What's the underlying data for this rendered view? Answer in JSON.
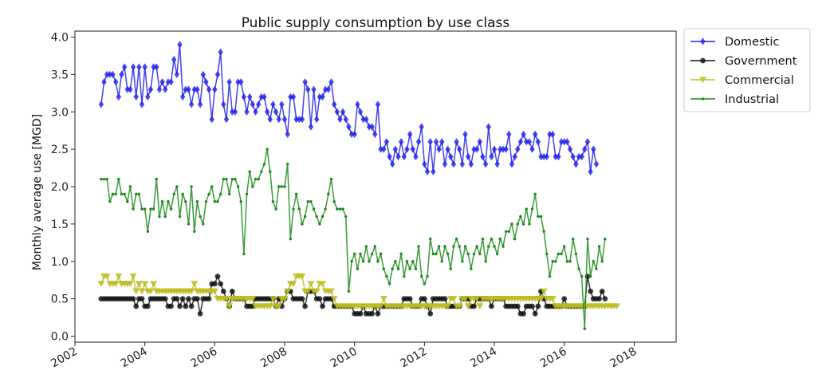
{
  "chart_data": {
    "type": "line",
    "title": "Public supply consumption by use class",
    "xlabel": "",
    "ylabel": "Monthly average use [MGD]",
    "xlim": [
      2002.0,
      2019.2
    ],
    "ylim": [
      -0.08,
      4.08
    ],
    "x_ticks": [
      "2002",
      "2004",
      "2006",
      "2008",
      "2010",
      "2012",
      "2014",
      "2016",
      "2018"
    ],
    "y_ticks": [
      "0.0",
      "0.5",
      "1.0",
      "1.5",
      "2.0",
      "2.5",
      "3.0",
      "3.5",
      "4.0"
    ],
    "x_start": "2002-10",
    "x_step": "1 month",
    "legend_position": "outside upper right",
    "grid": false,
    "series": [
      {
        "name": "Domestic",
        "color": "#2222ee",
        "marker": "diamond",
        "values": [
          3.1,
          3.4,
          3.5,
          3.5,
          3.5,
          3.4,
          3.2,
          3.5,
          3.6,
          3.3,
          3.3,
          3.6,
          3.2,
          3.6,
          3.1,
          3.6,
          3.2,
          3.3,
          3.6,
          3.6,
          3.3,
          3.4,
          3.3,
          3.4,
          3.4,
          3.7,
          3.5,
          3.9,
          3.2,
          3.3,
          3.3,
          3.1,
          3.3,
          3.3,
          3.1,
          3.5,
          3.4,
          3.3,
          2.9,
          3.3,
          3.5,
          3.8,
          3.1,
          2.9,
          3.4,
          3.0,
          3.0,
          3.4,
          3.4,
          3.2,
          3.0,
          3.2,
          3.1,
          3.0,
          3.1,
          3.2,
          3.2,
          3.0,
          2.9,
          3.1,
          3.0,
          2.9,
          3.1,
          2.9,
          2.7,
          3.2,
          3.2,
          2.9,
          2.9,
          2.9,
          3.4,
          3.3,
          2.8,
          3.3,
          2.9,
          3.2,
          3.2,
          3.3,
          3.3,
          3.4,
          3.1,
          3.0,
          2.9,
          3.0,
          2.9,
          2.8,
          2.7,
          2.7,
          3.1,
          3.0,
          2.9,
          2.9,
          2.8,
          2.8,
          2.7,
          3.1,
          2.5,
          2.5,
          2.6,
          2.4,
          2.3,
          2.5,
          2.4,
          2.6,
          2.4,
          2.5,
          2.7,
          2.5,
          2.4,
          2.6,
          2.8,
          2.3,
          2.2,
          2.6,
          2.2,
          2.6,
          2.5,
          2.6,
          2.3,
          2.5,
          2.4,
          2.3,
          2.6,
          2.5,
          2.3,
          2.7,
          2.4,
          2.3,
          2.5,
          2.5,
          2.6,
          2.4,
          2.3,
          2.8,
          2.4,
          2.5,
          2.3,
          2.5,
          2.5,
          2.5,
          2.7,
          2.3,
          2.4,
          2.5,
          2.6,
          2.7,
          2.6,
          2.6,
          2.5,
          2.7,
          2.6,
          2.4,
          2.4,
          2.4,
          2.7,
          2.7,
          2.4,
          2.4,
          2.6,
          2.6,
          2.6,
          2.5,
          2.4,
          2.3,
          2.4,
          2.4,
          2.5,
          2.6,
          2.2,
          2.5,
          2.3
        ]
      },
      {
        "name": "Government",
        "color": "#111111",
        "marker": "circle",
        "values": [
          0.5,
          0.5,
          0.5,
          0.5,
          0.5,
          0.5,
          0.5,
          0.5,
          0.5,
          0.5,
          0.5,
          0.5,
          0.4,
          0.5,
          0.5,
          0.4,
          0.4,
          0.5,
          0.5,
          0.5,
          0.5,
          0.5,
          0.5,
          0.4,
          0.4,
          0.5,
          0.5,
          0.4,
          0.5,
          0.4,
          0.5,
          0.4,
          0.5,
          0.5,
          0.3,
          0.5,
          0.5,
          0.5,
          0.7,
          0.7,
          0.8,
          0.7,
          0.6,
          0.5,
          0.4,
          0.6,
          0.5,
          0.5,
          0.5,
          0.5,
          0.4,
          0.4,
          0.4,
          0.5,
          0.5,
          0.5,
          0.5,
          0.5,
          0.5,
          0.5,
          0.4,
          0.5,
          0.4,
          0.5,
          0.6,
          0.6,
          0.5,
          0.5,
          0.5,
          0.5,
          0.4,
          0.6,
          0.6,
          0.6,
          0.5,
          0.5,
          0.4,
          0.5,
          0.5,
          0.5,
          0.4,
          0.4,
          0.4,
          0.4,
          0.4,
          0.4,
          0.4,
          0.3,
          0.3,
          0.3,
          0.4,
          0.3,
          0.3,
          0.3,
          0.4,
          0.3,
          0.4,
          0.4,
          0.4,
          0.4,
          0.4,
          0.4,
          0.4,
          0.4,
          0.5,
          0.5,
          0.5,
          0.4,
          0.4,
          0.4,
          0.5,
          0.5,
          0.4,
          0.3,
          0.5,
          0.5,
          0.5,
          0.5,
          0.5,
          0.4,
          0.4,
          0.4,
          0.4,
          0.4,
          0.5,
          0.5,
          0.5,
          0.4,
          0.4,
          0.5,
          0.5,
          0.5,
          0.5,
          0.5,
          0.4,
          0.5,
          0.5,
          0.5,
          0.5,
          0.4,
          0.4,
          0.4,
          0.4,
          0.4,
          0.3,
          0.3,
          0.4,
          0.4,
          0.4,
          0.3,
          0.4,
          0.6,
          0.5,
          0.4,
          0.4,
          0.4,
          0.4,
          0.4,
          0.4,
          0.5,
          0.4,
          0.4,
          0.4,
          0.4,
          0.4,
          0.4,
          0.4,
          0.8,
          0.6,
          0.5,
          0.5,
          0.5,
          0.6,
          0.5
        ]
      },
      {
        "name": "Commercial",
        "color": "#bcbd22",
        "marker": "triangle-down",
        "values": [
          0.7,
          0.8,
          0.8,
          0.7,
          0.7,
          0.7,
          0.8,
          0.7,
          0.7,
          0.7,
          0.7,
          0.8,
          0.6,
          0.7,
          0.6,
          0.7,
          0.6,
          0.6,
          0.7,
          0.6,
          0.6,
          0.6,
          0.6,
          0.6,
          0.6,
          0.6,
          0.6,
          0.6,
          0.6,
          0.6,
          0.6,
          0.6,
          0.7,
          0.6,
          0.6,
          0.6,
          0.6,
          0.6,
          0.6,
          0.6,
          0.5,
          0.5,
          0.5,
          0.5,
          0.4,
          0.5,
          0.5,
          0.5,
          0.5,
          0.5,
          0.5,
          0.5,
          0.5,
          0.4,
          0.4,
          0.4,
          0.4,
          0.4,
          0.4,
          0.5,
          0.4,
          0.4,
          0.5,
          0.5,
          0.6,
          0.7,
          0.7,
          0.8,
          0.8,
          0.8,
          0.6,
          0.6,
          0.7,
          0.6,
          0.6,
          0.7,
          0.7,
          0.6,
          0.6,
          0.6,
          0.5,
          0.4,
          0.4,
          0.4,
          0.4,
          0.4,
          0.4,
          0.4,
          0.4,
          0.4,
          0.4,
          0.4,
          0.4,
          0.4,
          0.4,
          0.4,
          0.4,
          0.5,
          0.4,
          0.4,
          0.4,
          0.4,
          0.4,
          0.4,
          0.4,
          0.4,
          0.4,
          0.4,
          0.4,
          0.4,
          0.4,
          0.4,
          0.4,
          0.4,
          0.4,
          0.4,
          0.4,
          0.4,
          0.4,
          0.4,
          0.5,
          0.5,
          0.4,
          0.4,
          0.5,
          0.5,
          0.4,
          0.5,
          0.5,
          0.5,
          0.4,
          0.5,
          0.5,
          0.5,
          0.5,
          0.5,
          0.5,
          0.5,
          0.5,
          0.5,
          0.5,
          0.5,
          0.5,
          0.5,
          0.5,
          0.5,
          0.5,
          0.5,
          0.5,
          0.5,
          0.5,
          0.5,
          0.6,
          0.5,
          0.5,
          0.5,
          0.4,
          0.4,
          0.4,
          0.4,
          0.4,
          0.4,
          0.4,
          0.4,
          0.4,
          0.4,
          0.4,
          0.4,
          0.4,
          0.4,
          0.4,
          0.4,
          0.4,
          0.4,
          0.4,
          0.4,
          0.4,
          0.4
        ]
      },
      {
        "name": "Industrial",
        "color": "#1a8a1a",
        "marker": "point",
        "values": [
          2.1,
          2.1,
          2.1,
          1.8,
          1.9,
          1.9,
          2.1,
          1.9,
          1.9,
          1.8,
          2.0,
          1.7,
          1.9,
          1.9,
          1.7,
          1.7,
          1.4,
          1.7,
          1.7,
          2.1,
          1.6,
          1.8,
          1.6,
          1.8,
          1.7,
          1.9,
          2.0,
          1.6,
          1.9,
          1.8,
          1.5,
          2.0,
          1.4,
          1.8,
          1.6,
          1.5,
          1.8,
          1.9,
          2.0,
          1.8,
          1.8,
          1.9,
          2.1,
          2.1,
          1.9,
          2.1,
          2.1,
          2.0,
          1.8,
          1.1,
          1.9,
          2.2,
          2.0,
          2.1,
          2.1,
          2.2,
          2.3,
          2.5,
          2.2,
          1.8,
          1.7,
          2.0,
          2.0,
          2.0,
          2.3,
          1.3,
          1.7,
          1.9,
          1.7,
          1.5,
          1.6,
          1.8,
          1.8,
          1.7,
          1.6,
          1.5,
          1.6,
          1.7,
          1.9,
          2.1,
          1.8,
          1.7,
          1.7,
          1.7,
          1.6,
          0.6,
          1.0,
          1.1,
          0.9,
          1.1,
          1.0,
          1.2,
          1.0,
          1.1,
          1.2,
          1.0,
          1.1,
          0.9,
          0.8,
          0.7,
          0.9,
          1.0,
          0.9,
          1.1,
          0.8,
          1.0,
          0.9,
          1.0,
          0.9,
          1.2,
          0.8,
          0.7,
          0.8,
          1.3,
          1.1,
          1.1,
          1.2,
          1.0,
          1.2,
          1.1,
          0.9,
          1.2,
          1.3,
          1.2,
          1.0,
          1.2,
          1.1,
          0.9,
          1.1,
          1.2,
          1.1,
          1.3,
          1.0,
          1.2,
          1.3,
          1.2,
          1.1,
          1.3,
          1.2,
          1.4,
          1.4,
          1.5,
          1.3,
          1.5,
          1.6,
          1.5,
          1.7,
          1.5,
          1.7,
          1.9,
          1.6,
          1.6,
          1.4,
          1.1,
          0.8,
          1.0,
          1.0,
          1.1,
          1.1,
          1.2,
          1.0,
          1.0,
          1.3,
          1.1,
          0.9,
          0.8,
          0.1,
          1.3,
          0.8,
          1.0,
          0.9,
          1.2,
          1.0,
          1.3
        ]
      }
    ]
  }
}
